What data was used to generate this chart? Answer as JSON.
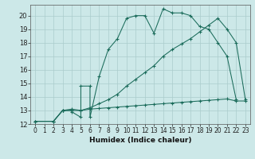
{
  "xlabel": "Humidex (Indice chaleur)",
  "bg_color": "#cce8e8",
  "grid_color": "#aacccc",
  "line_color": "#1a6b5a",
  "xlim": [
    -0.5,
    23.5
  ],
  "ylim": [
    12,
    20.8
  ],
  "xticks": [
    0,
    1,
    2,
    3,
    4,
    5,
    6,
    7,
    8,
    9,
    10,
    11,
    12,
    13,
    14,
    15,
    16,
    17,
    18,
    19,
    20,
    21,
    22,
    23
  ],
  "yticks": [
    12,
    13,
    14,
    15,
    16,
    17,
    18,
    19,
    20
  ],
  "s1x": [
    0,
    2,
    3,
    3,
    4,
    4,
    5,
    5,
    6,
    6,
    7,
    8,
    9,
    10,
    11,
    12,
    13,
    14,
    15,
    16,
    17,
    18,
    19,
    20,
    21,
    22
  ],
  "s1y": [
    12.2,
    12.2,
    13.0,
    13.0,
    13.0,
    12.9,
    12.5,
    14.8,
    14.8,
    12.5,
    15.5,
    17.5,
    18.3,
    19.8,
    20.0,
    20.0,
    18.7,
    20.5,
    20.2,
    20.2,
    20.0,
    19.2,
    19.0,
    18.0,
    17.0,
    13.8
  ],
  "s2x": [
    0,
    2,
    3,
    4,
    5,
    6,
    7,
    8,
    9,
    10,
    11,
    12,
    13,
    14,
    15,
    16,
    17,
    18,
    19,
    20,
    21,
    22,
    23
  ],
  "s2y": [
    12.2,
    12.2,
    13.0,
    13.1,
    13.0,
    13.1,
    13.15,
    13.2,
    13.25,
    13.3,
    13.35,
    13.4,
    13.45,
    13.5,
    13.55,
    13.6,
    13.65,
    13.7,
    13.75,
    13.8,
    13.85,
    13.7,
    13.7
  ],
  "s3x": [
    0,
    2,
    3,
    4,
    5,
    6,
    7,
    8,
    9,
    10,
    11,
    12,
    13,
    14,
    15,
    16,
    17,
    18,
    19,
    20,
    21,
    22,
    23
  ],
  "s3y": [
    12.2,
    12.2,
    13.0,
    13.0,
    13.0,
    13.2,
    13.5,
    13.8,
    14.2,
    14.8,
    15.3,
    15.8,
    16.3,
    17.0,
    17.5,
    17.9,
    18.3,
    18.8,
    19.3,
    19.8,
    19.0,
    18.0,
    13.8
  ],
  "tick_fontsize": 5.5,
  "xlabel_fontsize": 6.5,
  "linewidth": 0.75,
  "markersize": 3.0
}
